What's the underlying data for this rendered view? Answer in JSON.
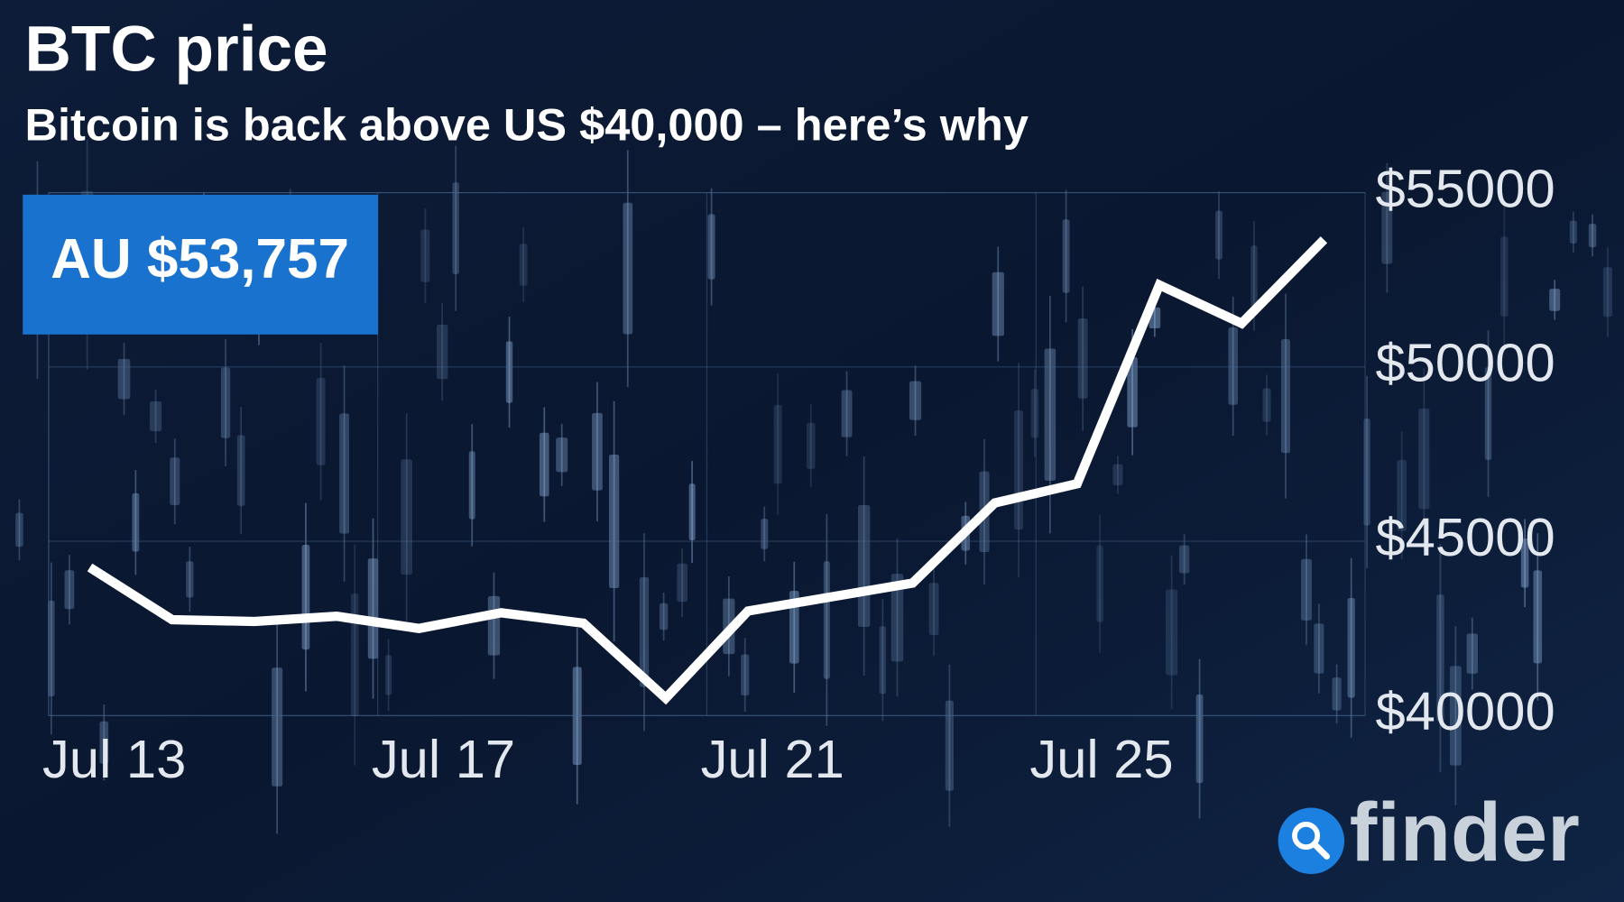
{
  "chart_data": {
    "type": "line",
    "title": "BTC price",
    "subtitle": "Bitcoin is back above US $40,000 – here’s why",
    "annotation": "AU $53,757",
    "x": [
      13.5,
      14.5,
      15.5,
      16.5,
      17.5,
      18.5,
      19.5,
      20.5,
      21.5,
      22.5,
      23.5,
      24.5,
      25.5,
      26.5,
      27.5,
      28.5
    ],
    "series": [
      {
        "color": "#ffffff",
        "values": [
          44250,
          42750,
          42700,
          42850,
          42500,
          42950,
          42650,
          40500,
          43000,
          43400,
          43800,
          46100,
          46650,
          52350,
          51250,
          53650
        ]
      }
    ],
    "xlim": [
      13,
      29
    ],
    "xticks": [
      {
        "value": 13,
        "label": "Jul 13"
      },
      {
        "value": 17,
        "label": "Jul 17"
      },
      {
        "value": 21,
        "label": "Jul 21"
      },
      {
        "value": 25,
        "label": "Jul 25"
      }
    ],
    "ylim": [
      40000,
      55000
    ],
    "yticks": [
      {
        "value": 40000,
        "label": "$40000"
      },
      {
        "value": 45000,
        "label": "$45000"
      },
      {
        "value": 50000,
        "label": "$50000"
      },
      {
        "value": 55000,
        "label": "$55000"
      }
    ],
    "grid": true
  },
  "brand": "finder"
}
